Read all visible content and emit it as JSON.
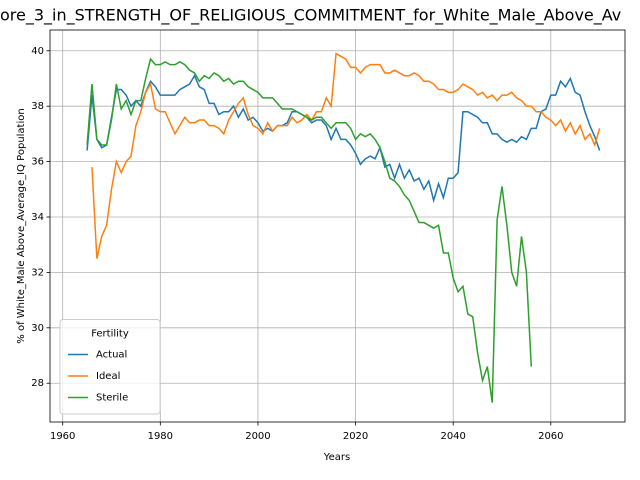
{
  "chart_data": {
    "type": "line",
    "title": "ore_3_in_STRENGTH_OF_RELIGIOUS_COMMITMENT_for_White_Male_Above_Av",
    "xlabel": "Years",
    "ylabel": "% of White_Male Above_Average_IQ Population",
    "x": [
      1965,
      1966,
      1967,
      1968,
      1969,
      1970,
      1971,
      1972,
      1973,
      1974,
      1975,
      1976,
      1977,
      1978,
      1979,
      1980,
      1981,
      1982,
      1983,
      1984,
      1985,
      1986,
      1987,
      1988,
      1989,
      1990,
      1991,
      1992,
      1993,
      1994,
      1995,
      1996,
      1997,
      1998,
      1999,
      2000,
      2001,
      2002,
      2003,
      2004,
      2005,
      2006,
      2007,
      2008,
      2009,
      2010,
      2011,
      2012,
      2013,
      2014,
      2015,
      2016,
      2017,
      2018,
      2019,
      2020,
      2021,
      2022,
      2023,
      2024,
      2025,
      2026,
      2027,
      2028,
      2029,
      2030,
      2031,
      2032,
      2033,
      2034,
      2035,
      2036,
      2037,
      2038,
      2039,
      2040,
      2041,
      2042,
      2043,
      2044,
      2045,
      2046,
      2047,
      2048,
      2049,
      2050,
      2051,
      2052,
      2053,
      2054,
      2055,
      2056,
      2057,
      2058,
      2059,
      2060,
      2061,
      2062,
      2063,
      2064,
      2065,
      2066,
      2067,
      2068,
      2069,
      2070
    ],
    "series": [
      {
        "name": "Actual",
        "color": "#1f77b4",
        "values": [
          36.4,
          38.4,
          36.8,
          36.5,
          36.6,
          37.6,
          38.6,
          38.6,
          38.4,
          38.0,
          38.2,
          38.0,
          38.5,
          38.9,
          38.7,
          38.4,
          38.4,
          38.4,
          38.4,
          38.6,
          38.7,
          38.8,
          39.1,
          38.7,
          38.6,
          38.1,
          38.1,
          37.7,
          37.8,
          37.8,
          38.0,
          37.6,
          37.9,
          37.5,
          37.6,
          37.4,
          37.1,
          37.2,
          37.1,
          37.3,
          37.3,
          37.4,
          37.8,
          37.8,
          37.7,
          37.6,
          37.4,
          37.5,
          37.5,
          37.3,
          36.8,
          37.2,
          36.8,
          36.8,
          36.6,
          36.3,
          35.9,
          36.1,
          36.2,
          36.1,
          36.5,
          35.8,
          35.9,
          35.4,
          35.9,
          35.4,
          35.7,
          35.3,
          35.4,
          35.0,
          35.3,
          34.6,
          35.2,
          34.7,
          35.4,
          35.4,
          35.6,
          37.8,
          37.8,
          37.7,
          37.6,
          37.4,
          37.4,
          37.0,
          37.0,
          36.8,
          36.7,
          36.8,
          36.7,
          36.9,
          36.8,
          37.2,
          37.2,
          37.8,
          37.9,
          38.4,
          38.4,
          38.9,
          38.7,
          39.0,
          38.5,
          38.4,
          37.8,
          37.3,
          36.9,
          36.4
        ]
      },
      {
        "name": "Ideal",
        "color": "#ff7f0e",
        "values": [
          null,
          35.8,
          32.5,
          33.3,
          33.7,
          35.0,
          36.0,
          35.6,
          36.0,
          36.2,
          37.3,
          37.8,
          38.5,
          38.8,
          37.9,
          37.8,
          37.8,
          37.4,
          37.0,
          37.3,
          37.6,
          37.4,
          37.4,
          37.5,
          37.5,
          37.3,
          37.3,
          37.2,
          37.0,
          37.5,
          37.8,
          38.1,
          38.3,
          37.7,
          37.3,
          37.2,
          37.0,
          37.4,
          37.1,
          37.3,
          37.3,
          37.3,
          37.6,
          37.4,
          37.5,
          37.7,
          37.5,
          37.8,
          37.8,
          38.3,
          38.0,
          39.9,
          39.8,
          39.7,
          39.4,
          39.4,
          39.2,
          39.4,
          39.5,
          39.5,
          39.5,
          39.2,
          39.2,
          39.3,
          39.2,
          39.1,
          39.1,
          39.2,
          39.1,
          38.9,
          38.9,
          38.8,
          38.6,
          38.6,
          38.5,
          38.5,
          38.6,
          38.8,
          38.7,
          38.6,
          38.4,
          38.5,
          38.3,
          38.4,
          38.2,
          38.4,
          38.4,
          38.5,
          38.3,
          38.2,
          38.0,
          38.0,
          37.8,
          37.8,
          37.6,
          37.5,
          37.3,
          37.5,
          37.1,
          37.4,
          37.0,
          37.3,
          36.8,
          37.0,
          36.6,
          37.2
        ]
      },
      {
        "name": "Sterile",
        "color": "#2ca02c",
        "values": [
          36.6,
          38.8,
          36.8,
          36.6,
          36.6,
          37.5,
          38.8,
          37.9,
          38.2,
          37.7,
          38.2,
          38.2,
          39.0,
          39.7,
          39.5,
          39.5,
          39.6,
          39.5,
          39.5,
          39.6,
          39.5,
          39.3,
          39.2,
          38.9,
          39.1,
          39.0,
          39.2,
          39.1,
          38.9,
          39.0,
          38.8,
          38.9,
          38.9,
          38.7,
          38.6,
          38.5,
          38.3,
          38.3,
          38.3,
          38.1,
          37.9,
          37.9,
          37.9,
          37.8,
          37.7,
          37.6,
          37.5,
          37.6,
          37.6,
          37.4,
          37.2,
          37.4,
          37.4,
          37.4,
          37.2,
          36.8,
          37.0,
          36.9,
          37.0,
          36.8,
          36.5,
          36.0,
          35.4,
          35.3,
          35.1,
          34.8,
          34.6,
          34.2,
          33.8,
          33.8,
          33.7,
          33.6,
          33.7,
          32.7,
          32.7,
          31.8,
          31.3,
          31.5,
          30.5,
          30.4,
          29.1,
          28.1,
          28.6,
          27.3,
          33.9,
          35.1,
          33.7,
          32.0,
          31.5,
          33.3,
          32.0,
          28.6,
          null,
          null,
          null,
          null,
          null,
          null,
          null,
          null,
          null,
          null,
          null,
          null,
          null,
          null
        ]
      }
    ],
    "xlim": [
      1957.4,
      2075.2
    ],
    "ylim": [
      26.6,
      40.75
    ],
    "xticks": [
      1960,
      1980,
      2000,
      2020,
      2040,
      2060
    ],
    "yticks": [
      28,
      30,
      32,
      34,
      36,
      38,
      40
    ],
    "grid": true,
    "legend_title": "Fertility",
    "legend": "lower left"
  }
}
